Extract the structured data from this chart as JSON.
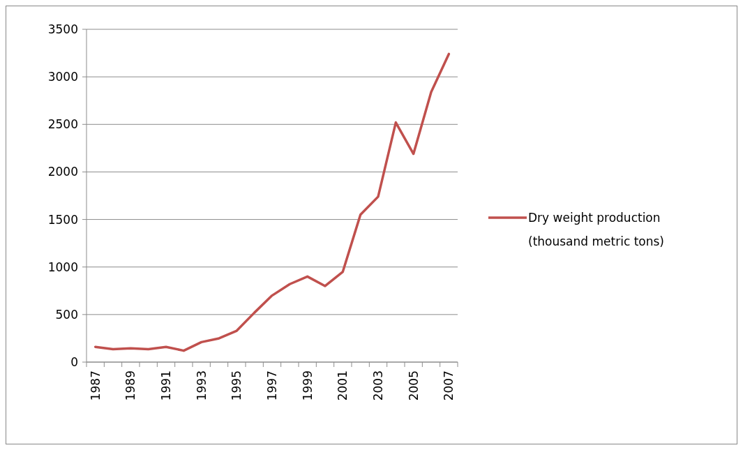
{
  "chart_data": {
    "type": "line",
    "categories": [
      "1987",
      null,
      "1989",
      null,
      "1991",
      null,
      "1993",
      null,
      "1995",
      null,
      "1997",
      null,
      "1999",
      null,
      "2001",
      null,
      "2003",
      null,
      "2005",
      null,
      "2007"
    ],
    "series": [
      {
        "name": "Dry weight production (thousand metric tons)",
        "color": "#c0504d",
        "values": [
          160,
          135,
          145,
          135,
          160,
          120,
          210,
          250,
          330,
          520,
          700,
          820,
          900,
          800,
          950,
          1550,
          1740,
          2520,
          2190,
          2840,
          3240
        ]
      }
    ],
    "ylim": [
      0,
      3500
    ],
    "yticks": [
      0,
      500,
      1000,
      1500,
      2000,
      2500,
      3000,
      3500
    ],
    "grid": "y",
    "legend": "right",
    "marker": "none",
    "line_style": "solid"
  }
}
